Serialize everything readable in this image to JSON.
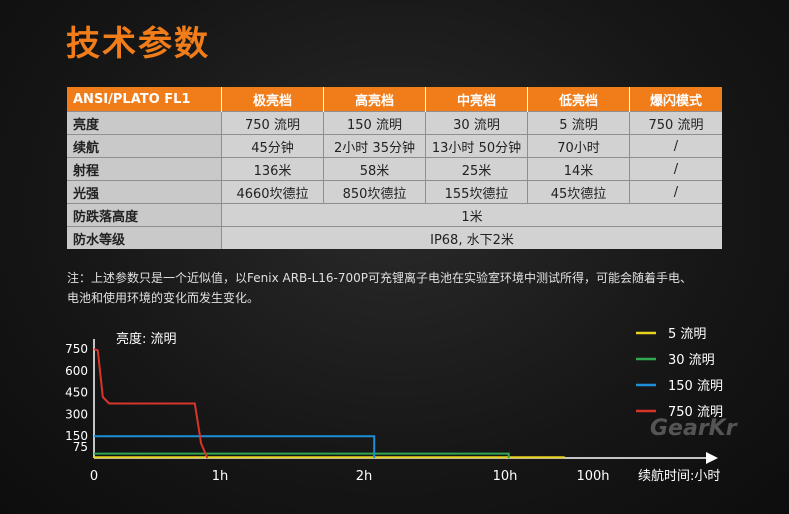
{
  "title": "技术参数",
  "table": {
    "headers": [
      "ANSI/PLATO FL1",
      "极亮档",
      "高亮档",
      "中亮档",
      "低亮档",
      "爆闪模式"
    ],
    "rows": [
      {
        "label": "亮度",
        "cells": [
          "750 流明",
          "150 流明",
          "30 流明",
          "5 流明",
          "750 流明"
        ]
      },
      {
        "label": "续航",
        "cells": [
          "45分钟",
          "2小时 35分钟",
          "13小时 50分钟",
          "70小时",
          "/"
        ]
      },
      {
        "label": "射程",
        "cells": [
          "136米",
          "58米",
          "25米",
          "14米",
          "/"
        ]
      },
      {
        "label": "光强",
        "cells": [
          "4660坎德拉",
          "850坎德拉",
          "155坎德拉",
          "45坎德拉",
          "/"
        ]
      },
      {
        "label": "防跌落高度",
        "merged": "1米"
      },
      {
        "label": "防水等级",
        "merged": "IP68, 水下2米"
      }
    ]
  },
  "note": {
    "line1": "注：上述参数只是一个近似值，以Fenix ARB-L16-700P可充锂离子电池在实验室环境中测试所得，可能会随着手电、",
    "line2": "电池和使用环境的变化而发生变化。"
  },
  "watermark": "GearKr",
  "chart_data": {
    "type": "line",
    "ylabel": "亮度: 流明",
    "xlabel": "续航时间:小时",
    "x_ticks": [
      "0",
      "1h",
      "2h",
      "10h",
      "100h"
    ],
    "y_ticks": [
      750,
      600,
      450,
      300,
      150,
      75
    ],
    "grid": false,
    "legend_position": "top-right",
    "series": [
      {
        "name": "5 流明",
        "color": "#e8d21e",
        "points": [
          [
            0,
            5
          ],
          [
            70,
            5
          ],
          [
            70,
            0
          ]
        ]
      },
      {
        "name": "30 流明",
        "color": "#2fa84f",
        "points": [
          [
            0,
            30
          ],
          [
            13.83,
            30
          ],
          [
            13.83,
            0
          ]
        ]
      },
      {
        "name": "150 流明",
        "color": "#1e8fd6",
        "points": [
          [
            0,
            150
          ],
          [
            2.58,
            150
          ],
          [
            2.58,
            0
          ]
        ]
      },
      {
        "name": "750 流明",
        "color": "#d8352a",
        "points": [
          [
            0,
            750
          ],
          [
            0.03,
            740
          ],
          [
            0.07,
            420
          ],
          [
            0.12,
            375
          ],
          [
            0.8,
            375
          ],
          [
            0.85,
            100
          ],
          [
            0.9,
            0
          ]
        ]
      }
    ]
  }
}
